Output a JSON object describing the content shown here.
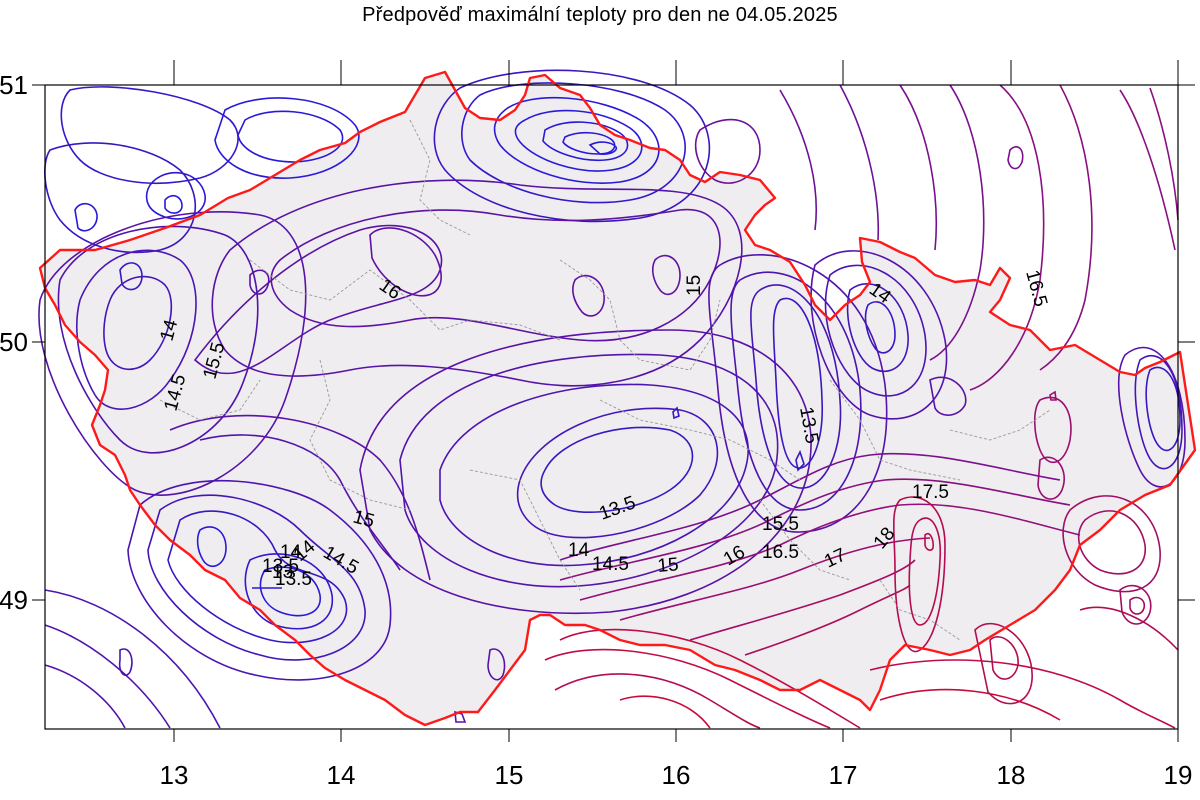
{
  "title": "Předpověď maximální teploty pro den ne 04.05.2025",
  "axes": {
    "x_ticks": [
      "13",
      "14",
      "15",
      "16",
      "17",
      "18",
      "19"
    ],
    "y_ticks": [
      "51",
      "50",
      "49"
    ]
  },
  "colors": {
    "border": "#ff1a1a",
    "country_fill": "#efedef",
    "cold": "#2a1ad8",
    "mid": "#6a12a0",
    "warm": "#b8105a"
  },
  "contour_labels": [
    "16",
    "15.5",
    "14",
    "14.5",
    "15",
    "16.5",
    "14",
    "13.5",
    "13.5",
    "13.5",
    "14",
    "14.5",
    "15",
    "16",
    "15.5",
    "16.5",
    "17",
    "18",
    "17.5",
    "15",
    "14.5",
    "14",
    "13",
    "14",
    "13.5"
  ]
}
